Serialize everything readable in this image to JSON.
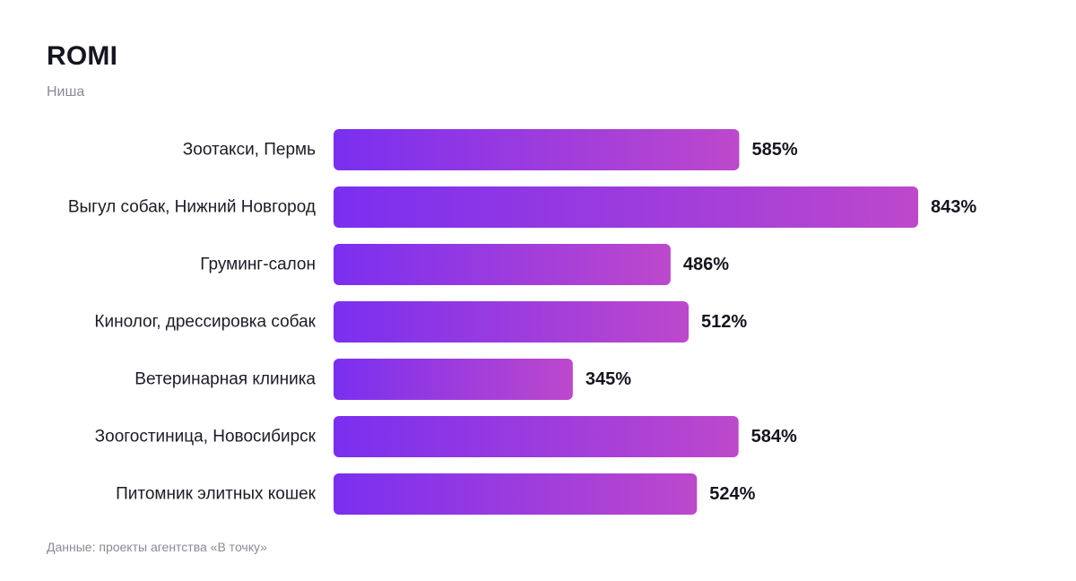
{
  "header": {
    "title": "ROMI",
    "subtitle": "Ниша"
  },
  "footer": {
    "source": "Данные: проекты агентства «В точку»"
  },
  "colors": {
    "bar_gradient_start": "#7a2ff0",
    "bar_gradient_end": "#bd48cc",
    "text": "#15151f",
    "muted_text": "#8a8a96"
  },
  "chart_data": {
    "type": "bar",
    "orientation": "horizontal",
    "title": "ROMI",
    "subtitle": "Ниша",
    "categories": [
      "Зоотакси, Пермь",
      "Выгул собак, Нижний Новгород",
      "Груминг-салон",
      "Кинолог, дрессировка собак",
      "Ветеринарная клиника",
      "Зоогостиница, Новосибирск",
      "Питомник элитных кошек"
    ],
    "values": [
      585,
      843,
      486,
      512,
      345,
      584,
      524
    ],
    "value_labels": [
      "585%",
      "843%",
      "486%",
      "512%",
      "345%",
      "584%",
      "524%"
    ],
    "unit": "%",
    "xlim": [
      0,
      843
    ],
    "grid": false,
    "legend": "none"
  }
}
